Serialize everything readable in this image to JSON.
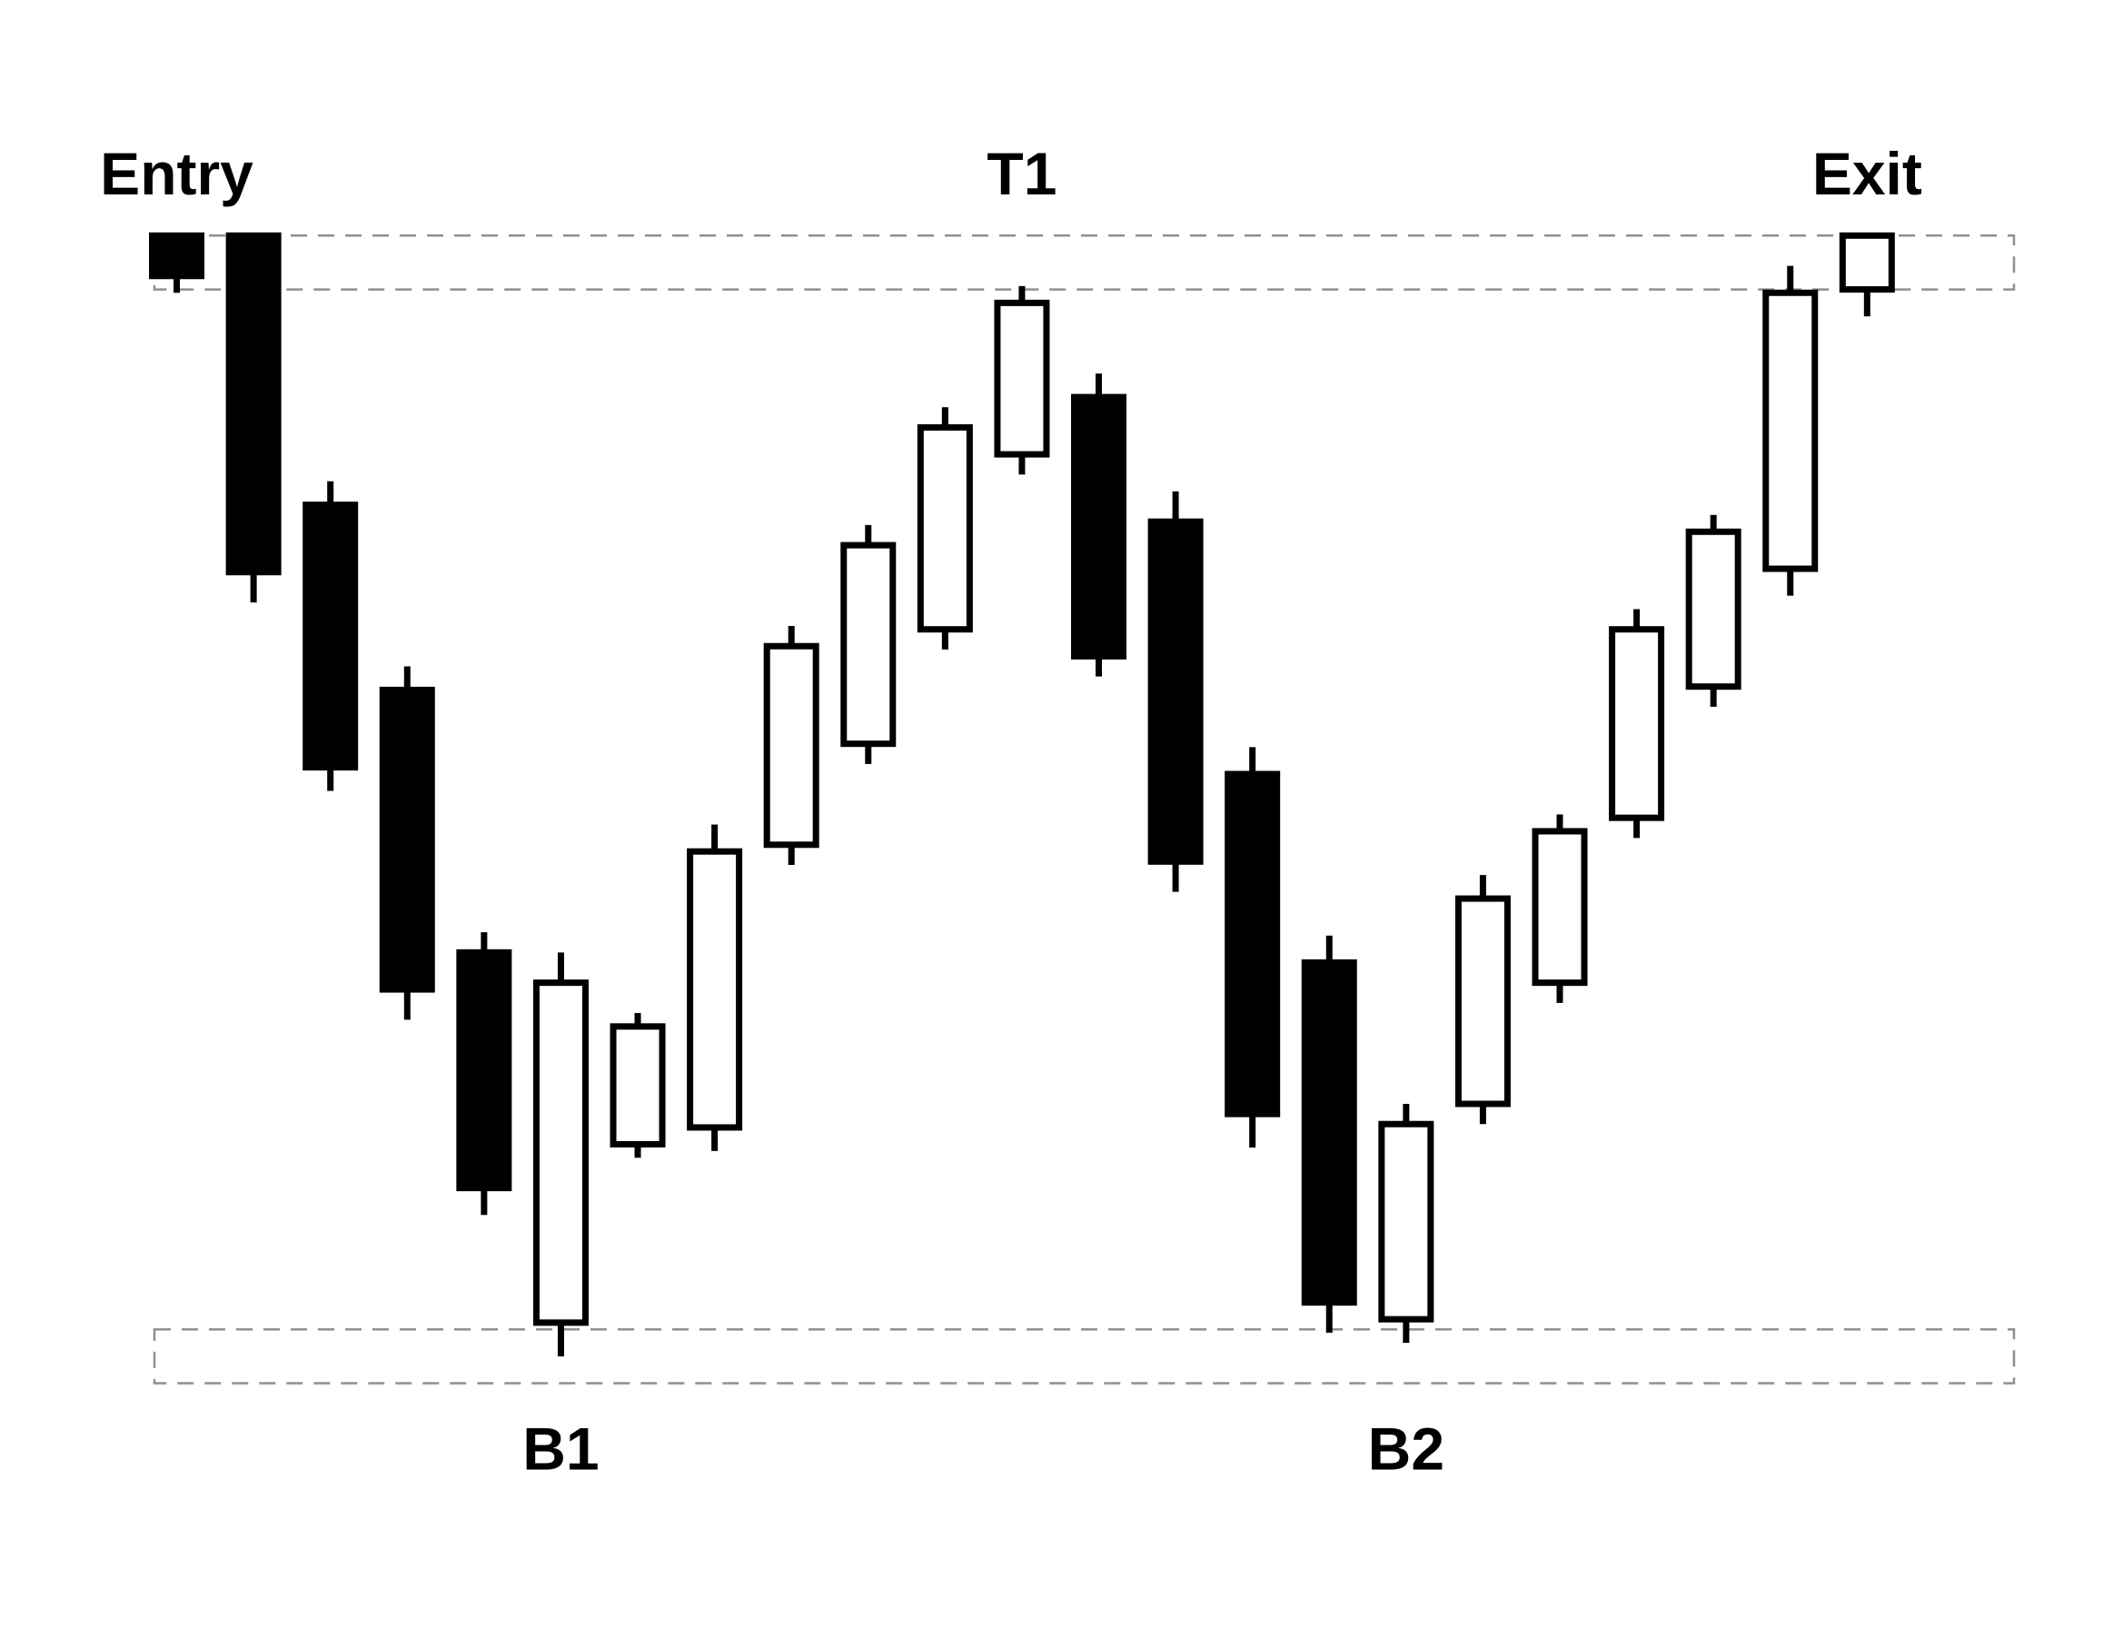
{
  "chart_data": {
    "type": "candlestick",
    "title": "",
    "xlabel": "",
    "ylabel": "",
    "x_range": [
      -2.3,
      25.2
    ],
    "y_range": [
      -0.62,
      4.25
    ],
    "grid": false,
    "legend": "none",
    "colors": {
      "up_fill": "#ffffff",
      "down_fill": "#000000",
      "outline": "#000000",
      "zone_line": "#8f8f8f",
      "text": "#000000"
    },
    "zones": [
      {
        "name": "top-zone",
        "y_low": 3.39,
        "y_high": 3.55
      },
      {
        "name": "bottom-zone",
        "y_low": 0.14,
        "y_high": 0.3
      }
    ],
    "candles": [
      {
        "x": 0,
        "open": 3.55,
        "close": 3.43,
        "high": 3.55,
        "low": 3.38
      },
      {
        "x": 1,
        "open": 3.55,
        "close": 2.55,
        "high": 3.55,
        "low": 2.46
      },
      {
        "x": 2,
        "open": 2.75,
        "close": 1.97,
        "high": 2.82,
        "low": 1.9
      },
      {
        "x": 3,
        "open": 2.2,
        "close": 1.31,
        "high": 2.27,
        "low": 1.22
      },
      {
        "x": 4,
        "open": 1.42,
        "close": 0.72,
        "high": 1.48,
        "low": 0.64
      },
      {
        "x": 5,
        "open": 0.32,
        "close": 1.33,
        "high": 1.42,
        "low": 0.22
      },
      {
        "x": 6,
        "open": 0.85,
        "close": 1.2,
        "high": 1.24,
        "low": 0.81
      },
      {
        "x": 7,
        "open": 0.9,
        "close": 1.72,
        "high": 1.8,
        "low": 0.83
      },
      {
        "x": 8,
        "open": 1.74,
        "close": 2.33,
        "high": 2.39,
        "low": 1.68
      },
      {
        "x": 9,
        "open": 2.04,
        "close": 2.63,
        "high": 2.69,
        "low": 1.98
      },
      {
        "x": 10,
        "open": 2.38,
        "close": 2.98,
        "high": 3.04,
        "low": 2.32
      },
      {
        "x": 11,
        "open": 2.9,
        "close": 3.35,
        "high": 3.4,
        "low": 2.84
      },
      {
        "x": 12,
        "open": 3.07,
        "close": 2.3,
        "high": 3.14,
        "low": 2.24
      },
      {
        "x": 13,
        "open": 2.7,
        "close": 1.69,
        "high": 2.79,
        "low": 1.6
      },
      {
        "x": 14,
        "open": 1.95,
        "close": 0.94,
        "high": 2.03,
        "low": 0.84
      },
      {
        "x": 15,
        "open": 1.39,
        "close": 0.38,
        "high": 1.47,
        "low": 0.29
      },
      {
        "x": 16,
        "open": 0.33,
        "close": 0.91,
        "high": 0.97,
        "low": 0.26
      },
      {
        "x": 17,
        "open": 0.97,
        "close": 1.58,
        "high": 1.65,
        "low": 0.91
      },
      {
        "x": 18,
        "open": 1.33,
        "close": 1.78,
        "high": 1.83,
        "low": 1.27
      },
      {
        "x": 19,
        "open": 1.82,
        "close": 2.38,
        "high": 2.44,
        "low": 1.76
      },
      {
        "x": 20,
        "open": 2.21,
        "close": 2.67,
        "high": 2.72,
        "low": 2.15
      },
      {
        "x": 21,
        "open": 2.56,
        "close": 3.38,
        "high": 3.46,
        "low": 2.48
      },
      {
        "x": 22,
        "open": 3.39,
        "close": 3.55,
        "high": 3.55,
        "low": 3.31
      }
    ],
    "annotations": [
      {
        "name": "entry",
        "text": "Entry",
        "x": 0,
        "y": 3.72
      },
      {
        "name": "t1",
        "text": "T1",
        "x": 11,
        "y": 3.72
      },
      {
        "name": "exit",
        "text": "Exit",
        "x": 22,
        "y": 3.72
      },
      {
        "name": "b1",
        "text": "B1",
        "x": 5,
        "y": -0.07
      },
      {
        "name": "b2",
        "text": "B2",
        "x": 16,
        "y": -0.07
      }
    ]
  }
}
